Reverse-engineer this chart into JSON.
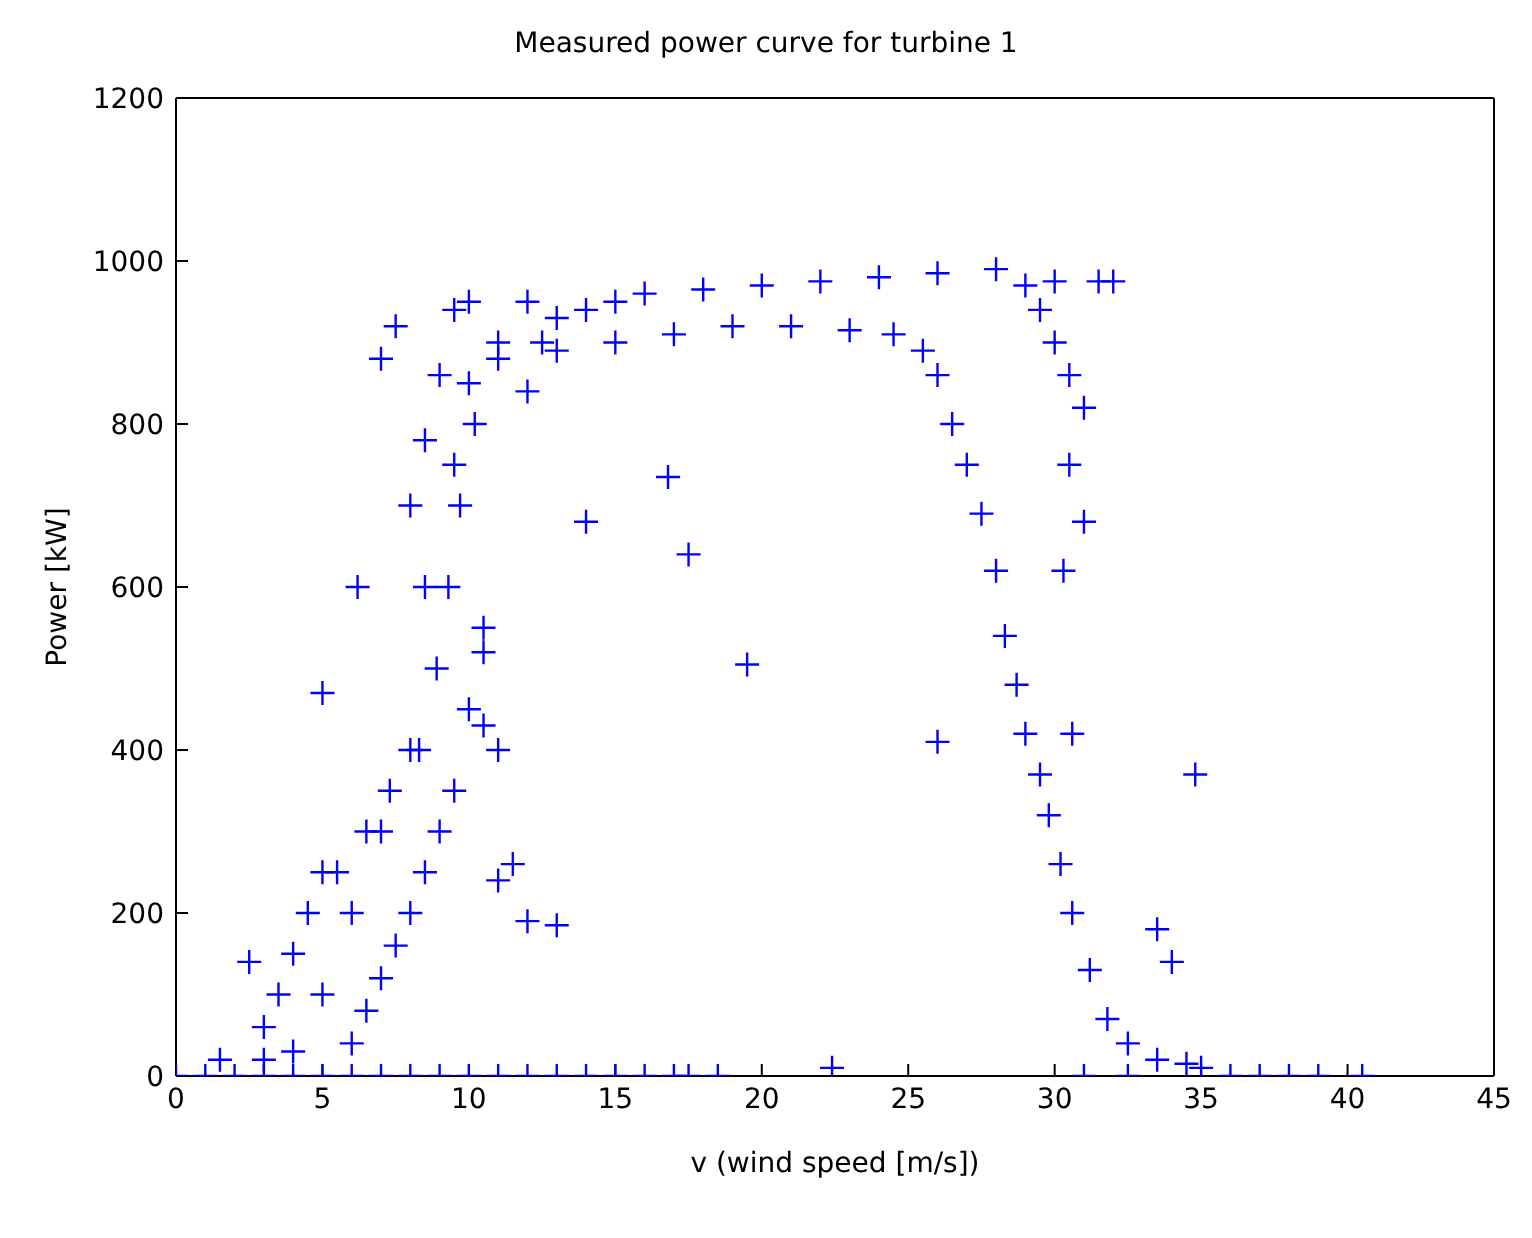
{
  "chart_data": {
    "type": "scatter",
    "title": "Measured power curve for turbine 1",
    "xlabel": "v (wind speed [m/s])",
    "ylabel": "Power [kW]",
    "xlim": [
      0,
      45
    ],
    "ylim": [
      0,
      1200
    ],
    "xticks": [
      0,
      5,
      10,
      15,
      20,
      25,
      30,
      35,
      40,
      45
    ],
    "yticks": [
      0,
      200,
      400,
      600,
      800,
      1000,
      1200
    ],
    "legend": false,
    "marker": "cross",
    "series": [
      {
        "color": "#0000ff",
        "x": [
          0,
          1,
          2,
          3,
          4,
          5,
          6,
          7,
          8,
          9,
          10,
          11,
          12,
          13,
          14,
          15,
          16,
          17,
          17.5,
          18.5,
          22.4,
          31,
          32.5,
          36,
          37,
          38,
          39,
          40.5,
          1.5,
          2.5,
          3,
          3.5,
          4,
          4.5,
          5,
          5,
          5.5,
          6,
          6.2,
          6.5,
          7,
          7,
          7.3,
          7.5,
          8,
          8,
          8.3,
          8.5,
          8.9,
          9,
          9.3,
          9.5,
          9.7,
          10,
          10.2,
          10.5,
          11,
          11,
          12,
          12.5,
          13,
          14,
          15,
          16,
          18,
          20,
          22,
          24,
          26,
          28,
          29,
          30,
          31.5,
          32,
          8,
          8.5,
          9,
          9.5,
          10,
          10.5,
          6,
          6.5,
          7,
          7.5,
          8.5,
          9.5,
          10,
          11,
          12,
          5,
          4,
          3,
          13,
          15,
          17,
          19,
          21,
          23,
          24.5,
          25.5,
          26,
          26.5,
          27,
          27.5,
          28,
          28.3,
          28.7,
          29,
          29.5,
          29.8,
          30.2,
          30.6,
          31.2,
          31.8,
          32.5,
          33.5,
          34.5,
          35,
          29.5,
          30,
          30.5,
          31,
          30.5,
          31,
          30.3,
          30.6,
          33.5,
          34,
          34.8,
          26,
          19.5,
          17.5,
          16.8,
          14,
          13,
          12,
          11,
          10.5,
          11.5
        ],
        "values": [
          0,
          0,
          0,
          0,
          0,
          0,
          0,
          0,
          0,
          0,
          0,
          0,
          0,
          0,
          0,
          0,
          0,
          0,
          0,
          0,
          10,
          0,
          0,
          0,
          0,
          0,
          0,
          0,
          20,
          140,
          60,
          100,
          150,
          200,
          100,
          470,
          250,
          200,
          600,
          300,
          300,
          880,
          350,
          920,
          400,
          700,
          400,
          780,
          500,
          860,
          600,
          940,
          700,
          950,
          800,
          520,
          900,
          400,
          950,
          900,
          930,
          940,
          950,
          960,
          965,
          970,
          975,
          980,
          985,
          990,
          970,
          975,
          975,
          975,
          200,
          250,
          300,
          350,
          450,
          550,
          40,
          80,
          120,
          160,
          600,
          750,
          850,
          880,
          840,
          250,
          30,
          20,
          890,
          900,
          910,
          920,
          920,
          915,
          910,
          890,
          860,
          800,
          750,
          690,
          620,
          540,
          480,
          420,
          370,
          320,
          260,
          200,
          130,
          70,
          40,
          20,
          15,
          10,
          940,
          900,
          860,
          820,
          750,
          680,
          620,
          420,
          180,
          140,
          370,
          410,
          505,
          640,
          735,
          680,
          185,
          190,
          240,
          430,
          260
        ]
      }
    ]
  }
}
